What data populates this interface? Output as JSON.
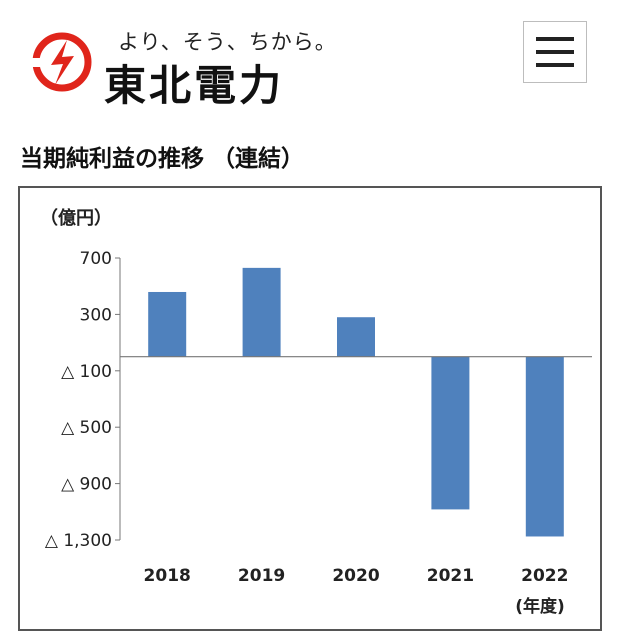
{
  "header": {
    "tagline": "より、そう、ちから。",
    "brand_name": "東北電力",
    "logo_icon": "tohoku-electric-logo-icon",
    "menu_icon": "hamburger-menu-icon",
    "brand_color": "#e0251b"
  },
  "section": {
    "title": "当期純利益の推移 （連結）"
  },
  "chart_data": {
    "type": "bar",
    "title": "",
    "unit_label": "（億円）",
    "xlabel": "(年度)",
    "ylabel": "",
    "categories": [
      "2018",
      "2019",
      "2020",
      "2021",
      "2022"
    ],
    "values": [
      459,
      630,
      280,
      -1083,
      -1275
    ],
    "ylim": [
      -1300,
      700
    ],
    "yticks": [
      700,
      300,
      -100,
      -500,
      -900,
      -1300
    ],
    "ytick_labels": [
      "700",
      "300",
      "△ 100",
      "△ 500",
      "△ 900",
      "△ 1,300"
    ],
    "bar_color": "#4f81bd",
    "grid": false,
    "legend": "none"
  }
}
